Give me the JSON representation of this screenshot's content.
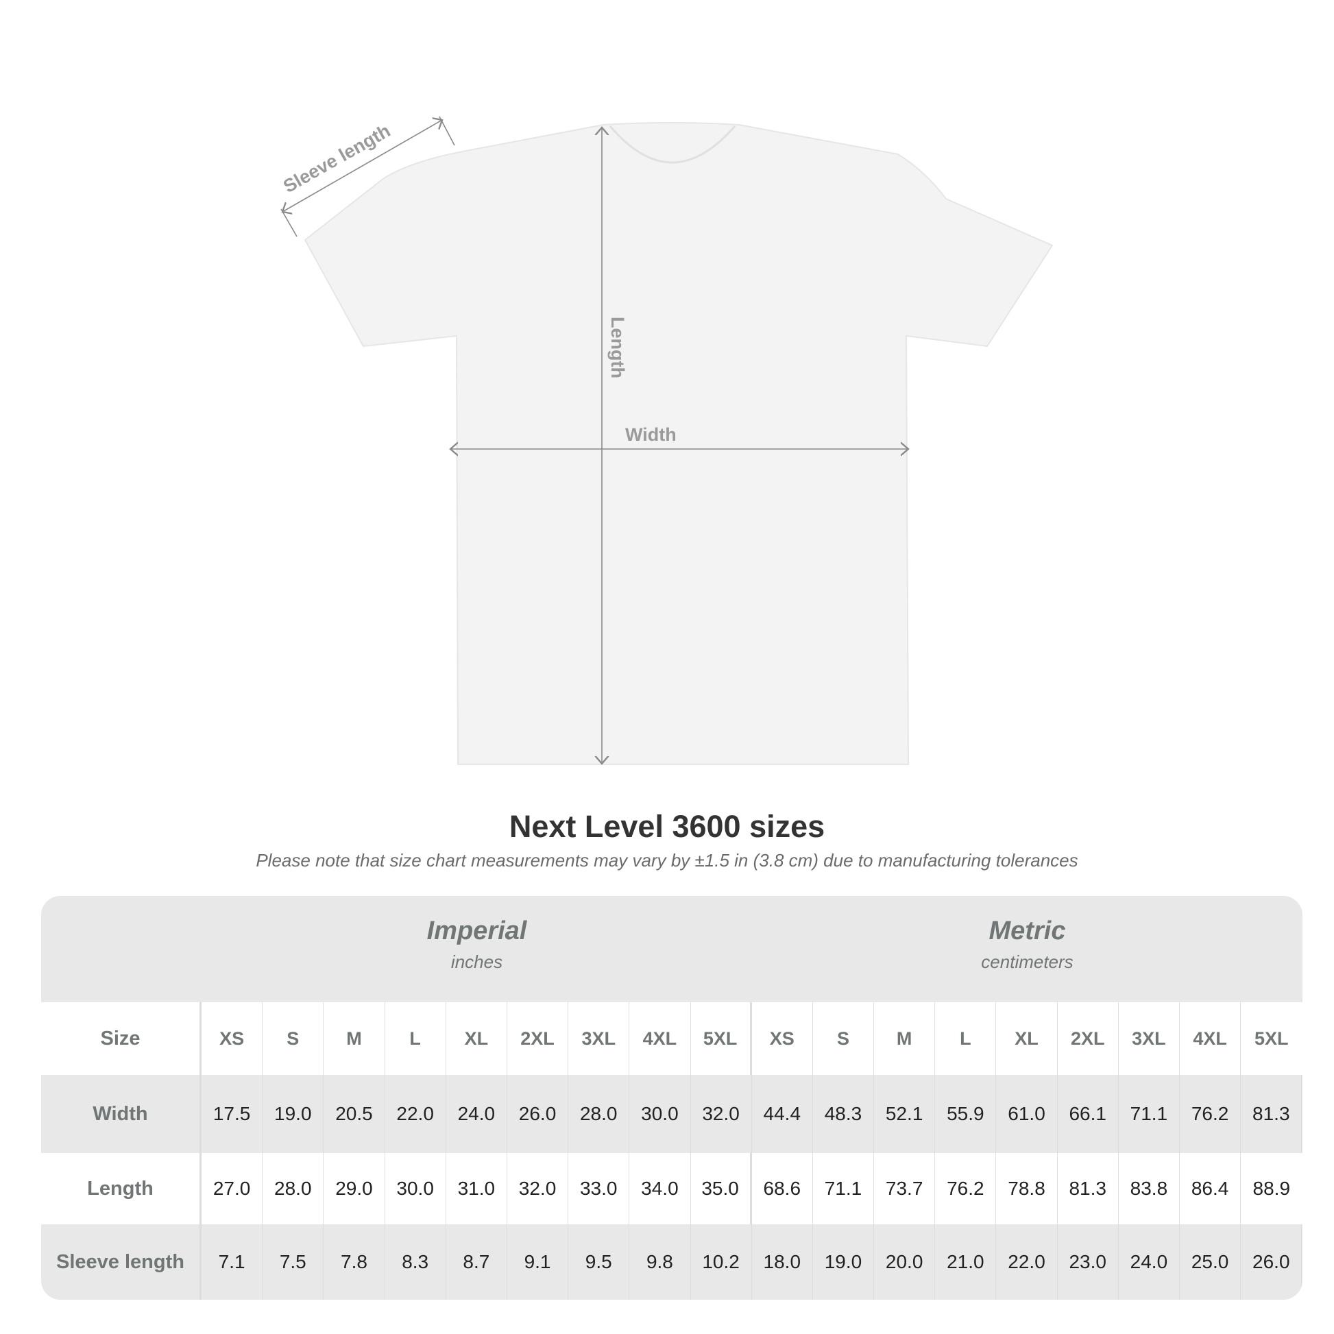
{
  "diagram": {
    "labels": {
      "sleeve": "Sleeve length",
      "length": "Length",
      "width": "Width"
    },
    "colors": {
      "shirt": "#f3f3f3",
      "annotation": "#8a8a8a"
    }
  },
  "title": "Next Level 3600 sizes",
  "subtitle": "Please note that size chart measurements may vary by ±1.5 in (3.8 cm) due to manufacturing tolerances",
  "table": {
    "imperial": {
      "name": "Imperial",
      "unit": "inches"
    },
    "metric": {
      "name": "Metric",
      "unit": "centimeters"
    },
    "size_label": "Size",
    "sizes": [
      "XS",
      "S",
      "M",
      "L",
      "XL",
      "2XL",
      "3XL",
      "4XL",
      "5XL"
    ],
    "rows": [
      {
        "label": "Width",
        "imperial": [
          "17.5",
          "19.0",
          "20.5",
          "22.0",
          "24.0",
          "26.0",
          "28.0",
          "30.0",
          "32.0"
        ],
        "metric": [
          "44.4",
          "48.3",
          "52.1",
          "55.9",
          "61.0",
          "66.1",
          "71.1",
          "76.2",
          "81.3"
        ]
      },
      {
        "label": "Length",
        "imperial": [
          "27.0",
          "28.0",
          "29.0",
          "30.0",
          "31.0",
          "32.0",
          "33.0",
          "34.0",
          "35.0"
        ],
        "metric": [
          "68.6",
          "71.1",
          "73.7",
          "76.2",
          "78.8",
          "81.3",
          "83.8",
          "86.4",
          "88.9"
        ]
      },
      {
        "label": "Sleeve length",
        "imperial": [
          "7.1",
          "7.5",
          "7.8",
          "8.3",
          "8.7",
          "9.1",
          "9.5",
          "9.8",
          "10.2"
        ],
        "metric": [
          "18.0",
          "19.0",
          "20.0",
          "21.0",
          "22.0",
          "23.0",
          "24.0",
          "25.0",
          "26.0"
        ]
      }
    ]
  }
}
